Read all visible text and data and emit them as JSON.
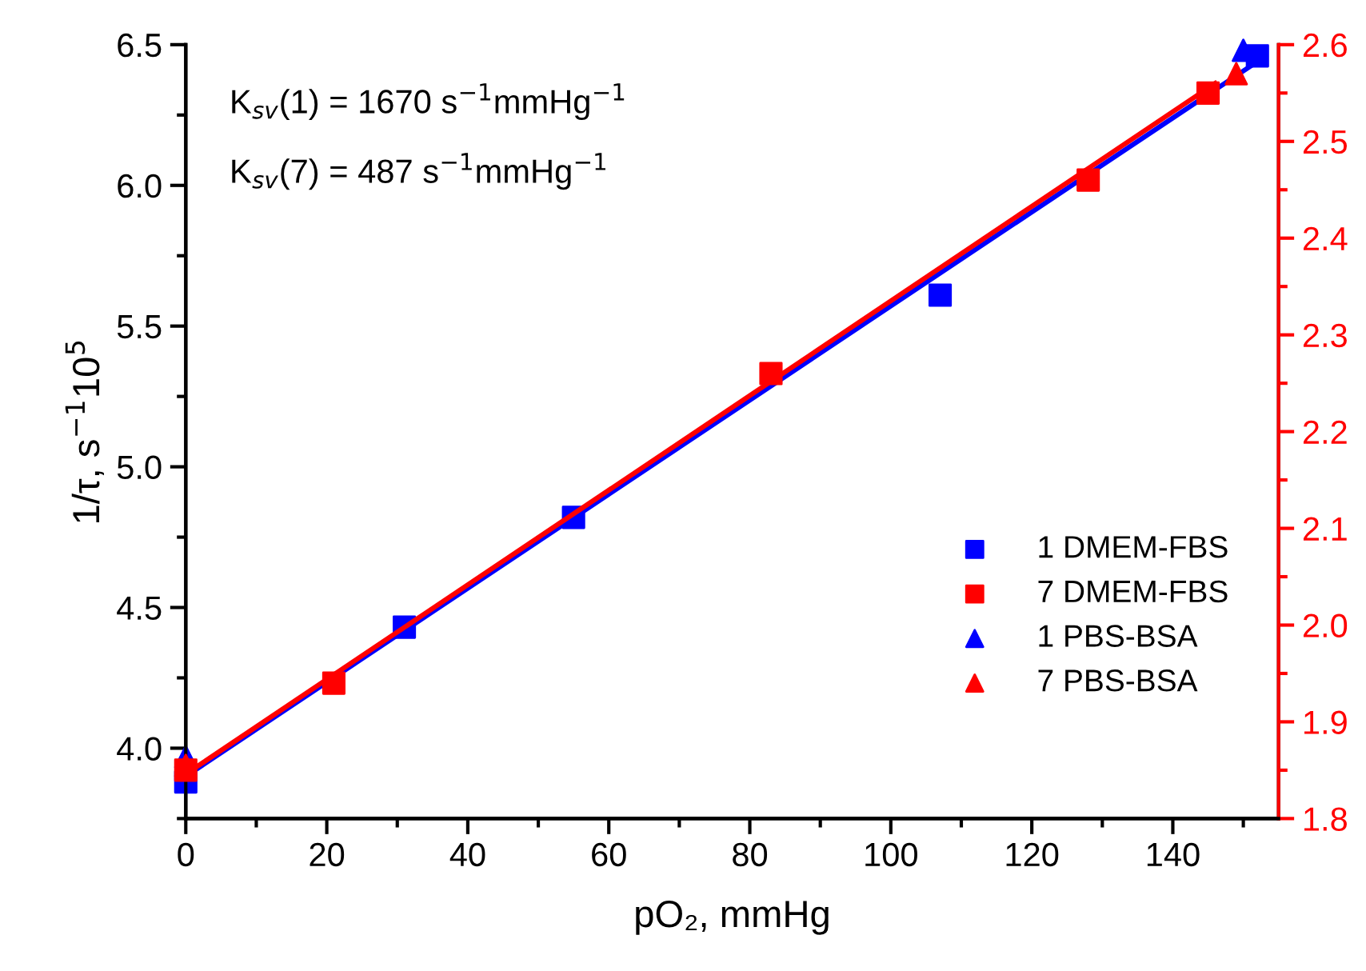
{
  "chart_data": {
    "type": "scatter",
    "xlabel": "pO₂, mmHg",
    "ylabel": "1/τ, s$^{−1}$10$^{5}$",
    "annotations": [
      "K$_{sv}$(1) = 1670 s$^{−1}$mmHg$^{−1}$",
      "K$_{sv}$(7) = 487 s$^{−1}$mmHg$^{−1}$"
    ],
    "xlim": [
      0,
      155
    ],
    "xticks": [
      0,
      20,
      40,
      60,
      80,
      100,
      120,
      140
    ],
    "ylim": [
      3.75,
      6.5
    ],
    "yticks": [
      {
        "value": 4.0,
        "label": "4.0"
      },
      4.5,
      {
        "value": 5.0,
        "label": "5.0"
      },
      5.5,
      {
        "value": 6.0,
        "label": "6.0"
      },
      6.5
    ],
    "y2lim": [
      1.8,
      2.6
    ],
    "y2ticks": [
      1.8,
      1.9,
      {
        "value": 2.0,
        "label": "2.0"
      },
      2.1,
      2.2,
      2.3,
      2.4,
      2.5,
      2.6
    ],
    "legend": "bottom right",
    "grid": false,
    "series": [
      {
        "name": "1 DMEM-FBS",
        "color": "#0000ff",
        "marker": "square",
        "x": [
          0,
          31,
          55,
          107,
          152
        ],
        "values": [
          3.88,
          4.43,
          4.82,
          5.61,
          6.46
        ]
      },
      {
        "name": "7 DMEM-FBS",
        "color": "#ff0000",
        "marker": "square",
        "axis": "y2",
        "x": [
          0,
          21,
          83,
          128,
          145
        ],
        "values": [
          1.85,
          1.94,
          2.26,
          2.46,
          2.55
        ]
      },
      {
        "name": "1 PBS-BSA",
        "color": "#0000ff",
        "marker": "triangle",
        "x": [
          0,
          150
        ],
        "values": [
          3.97,
          6.48
        ]
      },
      {
        "name": "7 PBS-BSA",
        "color": "#ff0000",
        "marker": "triangle",
        "axis": "y2",
        "x": [
          0,
          149
        ],
        "values": [
          1.855,
          2.57
        ]
      },
      {
        "type": "line",
        "color": "#0000ff",
        "line_style": "solid",
        "x": [
          0,
          152
        ],
        "values": [
          3.9,
          6.44
        ]
      },
      {
        "type": "line",
        "color": "#ff0000",
        "line_style": "solid",
        "axis": "y2",
        "x": [
          0,
          146
        ],
        "values": [
          1.846,
          2.56
        ]
      }
    ]
  }
}
